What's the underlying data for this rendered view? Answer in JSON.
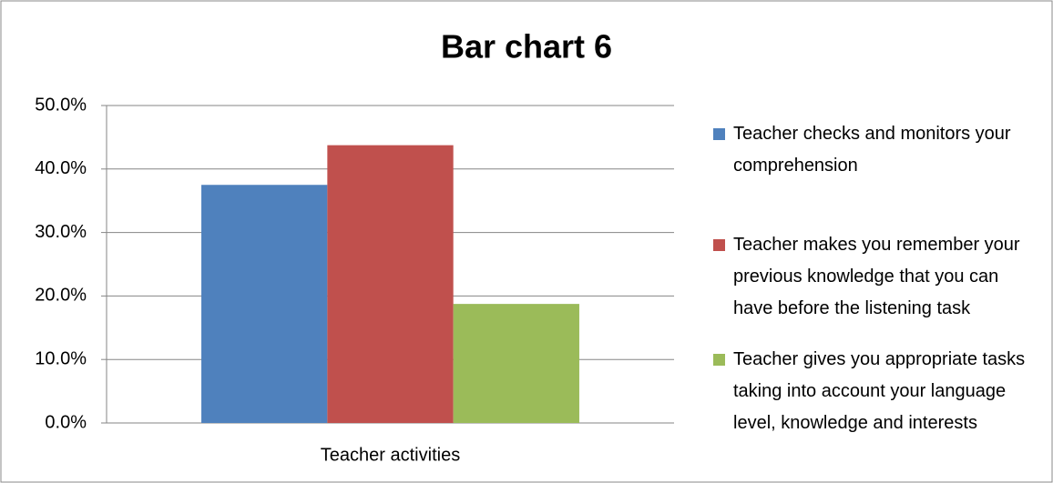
{
  "chart_data": {
    "type": "bar",
    "title": "Bar chart 6",
    "categories": [
      "Teacher activities"
    ],
    "series": [
      {
        "name": "Teacher checks and monitors your comprehension",
        "color": "#4f81bd",
        "values": [
          37.5
        ]
      },
      {
        "name": "Teacher makes you remember your previous knowledge that you can have before the listening task",
        "color": "#c0504d",
        "values": [
          43.75
        ]
      },
      {
        "name": "Teacher gives you appropriate tasks taking into account your language level, knowledge and interests",
        "color": "#9bbb59",
        "values": [
          18.75
        ]
      }
    ],
    "ylim": [
      0,
      50
    ],
    "yticks": [
      {
        "value": 0,
        "label": "0.0%"
      },
      {
        "value": 10,
        "label": "10.0%"
      },
      {
        "value": 20,
        "label": "20.0%"
      },
      {
        "value": 30,
        "label": "30.0%"
      },
      {
        "value": 40,
        "label": "40.0%"
      },
      {
        "value": 50,
        "label": "50.0%"
      }
    ],
    "grid": true,
    "legend": "right"
  }
}
